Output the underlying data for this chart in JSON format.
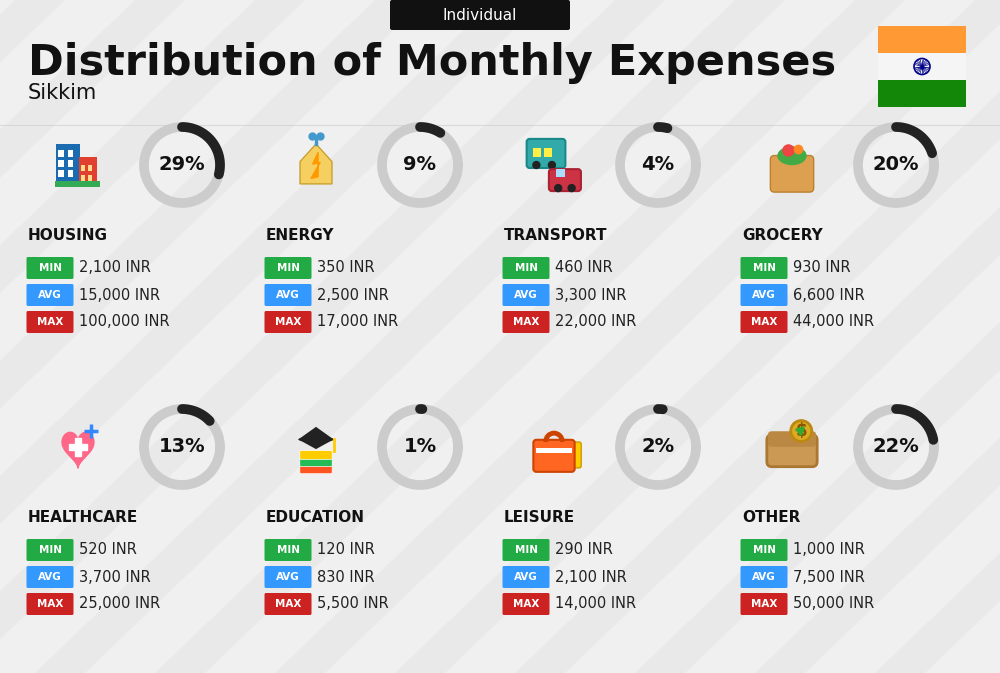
{
  "title": "Distribution of Monthly Expenses",
  "subtitle": "Individual",
  "location": "Sikkim",
  "background_color": "#f0f0f0",
  "categories": [
    {
      "name": "HOUSING",
      "percent": 29,
      "min": "2,100 INR",
      "avg": "15,000 INR",
      "max": "100,000 INR",
      "icon": "housing",
      "row": 0,
      "col": 0
    },
    {
      "name": "ENERGY",
      "percent": 9,
      "min": "350 INR",
      "avg": "2,500 INR",
      "max": "17,000 INR",
      "icon": "energy",
      "row": 0,
      "col": 1
    },
    {
      "name": "TRANSPORT",
      "percent": 4,
      "min": "460 INR",
      "avg": "3,300 INR",
      "max": "22,000 INR",
      "icon": "transport",
      "row": 0,
      "col": 2
    },
    {
      "name": "GROCERY",
      "percent": 20,
      "min": "930 INR",
      "avg": "6,600 INR",
      "max": "44,000 INR",
      "icon": "grocery",
      "row": 0,
      "col": 3
    },
    {
      "name": "HEALTHCARE",
      "percent": 13,
      "min": "520 INR",
      "avg": "3,700 INR",
      "max": "25,000 INR",
      "icon": "healthcare",
      "row": 1,
      "col": 0
    },
    {
      "name": "EDUCATION",
      "percent": 1,
      "min": "120 INR",
      "avg": "830 INR",
      "max": "5,500 INR",
      "icon": "education",
      "row": 1,
      "col": 1
    },
    {
      "name": "LEISURE",
      "percent": 2,
      "min": "290 INR",
      "avg": "2,100 INR",
      "max": "14,000 INR",
      "icon": "leisure",
      "row": 1,
      "col": 2
    },
    {
      "name": "OTHER",
      "percent": 22,
      "min": "1,000 INR",
      "avg": "7,500 INR",
      "max": "50,000 INR",
      "icon": "other",
      "row": 1,
      "col": 3
    }
  ],
  "min_color": "#22aa44",
  "avg_color": "#3399ff",
  "max_color": "#cc2222",
  "dark_arc_color": "#222222",
  "light_arc_color": "#cccccc",
  "title_color": "#111111",
  "india_flag_orange": "#FF9933",
  "india_flag_green": "#138808"
}
